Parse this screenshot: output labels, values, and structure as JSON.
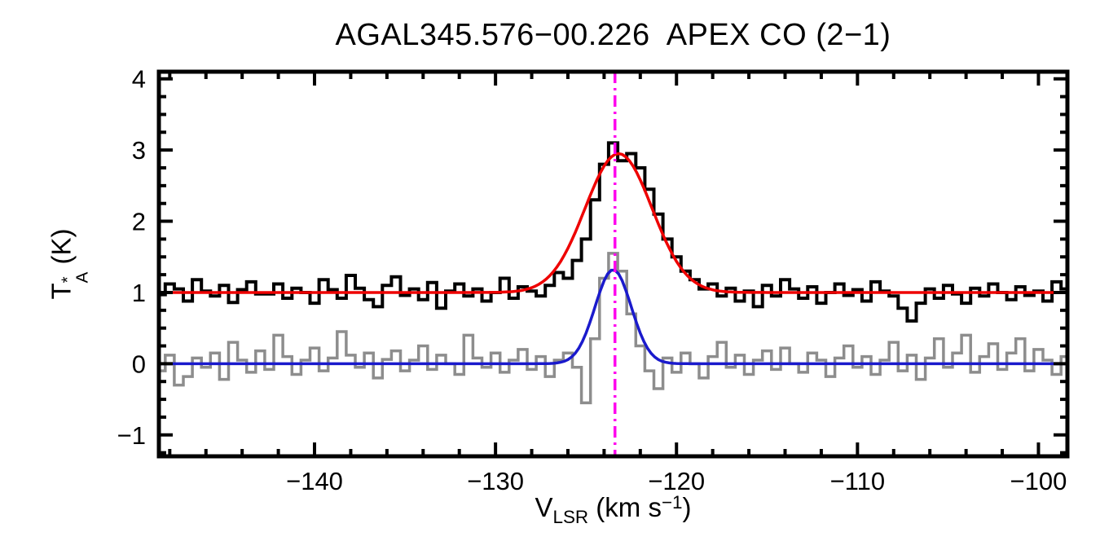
{
  "title": "AGAL345.576−00.226  APEX CO (2−1)",
  "labels": {
    "y": {
      "base": "T",
      "sup": "*",
      "sub": "A",
      "unit": " (K)"
    },
    "x": {
      "base": "V",
      "sub": "LSR",
      "mid": " (km s",
      "sup": "−1",
      "end": ")"
    }
  },
  "chart_data": {
    "type": "line",
    "title": "AGAL345.576−00.226  APEX CO (2−1)",
    "xlabel": "V_LSR (km s^-1)",
    "ylabel": "T_A^* (K)",
    "xlim": [
      -148.6,
      -98.4
    ],
    "ylim": [
      -1.3,
      4.1
    ],
    "grid": false,
    "legend": "none",
    "x_major_ticks": [
      -140,
      -130,
      -120,
      -110,
      -100
    ],
    "x_tick_labels": [
      "−140",
      "−130",
      "−120",
      "−110",
      "−100"
    ],
    "x_minor_step": 2,
    "y_major_ticks": [
      -1,
      0,
      1,
      2,
      3,
      4
    ],
    "y_tick_labels": [
      "−1",
      "0",
      "1",
      "2",
      "3",
      "4"
    ],
    "y_minor_step": 0.25,
    "vline": {
      "x": -123.4,
      "color": "#ff00ee",
      "style": "dash-dot",
      "name": "vlsr-marker-line"
    },
    "series": [
      {
        "name": "residual-spectrum",
        "style": "histogram",
        "color": "#8d8d8d",
        "width": 3.5,
        "x_start": -148.5,
        "dx": 0.5,
        "values": [
          -0.1,
          0.12,
          -0.3,
          -0.18,
          0.08,
          -0.05,
          0.15,
          -0.22,
          0.3,
          0.05,
          -0.12,
          0.18,
          -0.08,
          0.4,
          0.1,
          -0.15,
          0.05,
          0.22,
          -0.1,
          0.08,
          0.45,
          0.12,
          -0.05,
          0.15,
          -0.2,
          0.06,
          0.18,
          -0.1,
          0.05,
          0.25,
          -0.08,
          0.12,
          0.0,
          -0.15,
          0.4,
          0.08,
          -0.05,
          0.15,
          -0.12,
          0.05,
          0.2,
          -0.08,
          0.1,
          -0.18,
          0.05,
          0.15,
          -0.05,
          -0.55,
          0.35,
          1.2,
          1.55,
          1.3,
          0.7,
          0.25,
          -0.1,
          -0.35,
          0.08,
          -0.12,
          0.15,
          0.0,
          -0.2,
          0.1,
          0.3,
          -0.05,
          0.12,
          -0.15,
          0.05,
          0.18,
          -0.08,
          0.22,
          0.0,
          -0.12,
          0.15,
          0.05,
          -0.18,
          0.08,
          0.25,
          -0.05,
          0.1,
          -0.15,
          0.05,
          0.3,
          -0.1,
          0.12,
          -0.22,
          0.08,
          0.35,
          -0.05,
          0.15,
          0.4,
          -0.12,
          0.1,
          0.28,
          -0.08,
          0.15,
          0.35,
          -0.1,
          0.2,
          0.05,
          -0.15,
          0.1
        ]
      },
      {
        "name": "gaussian-fit-secondary",
        "style": "gaussian",
        "color": "#1a1acc",
        "width": 3.5,
        "baseline": 0.0,
        "amplitude": 1.32,
        "center": -123.5,
        "sigma": 1.0
      },
      {
        "name": "observed-spectrum",
        "style": "histogram",
        "color": "#000000",
        "width": 4,
        "x_start": -148.5,
        "dx": 0.5,
        "values": [
          0.97,
          1.12,
          1.05,
          0.88,
          1.18,
          1.02,
          0.95,
          1.1,
          0.86,
          1.04,
          1.15,
          0.98,
          0.98,
          1.12,
          0.92,
          1.06,
          1.0,
          0.85,
          1.18,
          1.04,
          0.92,
          1.24,
          1.06,
          0.9,
          0.8,
          1.1,
          1.22,
          0.96,
          1.05,
          0.9,
          1.14,
          0.78,
          1.02,
          1.12,
          0.95,
          1.05,
          0.88,
          1.0,
          1.2,
          0.92,
          1.08,
          1.02,
          0.95,
          1.1,
          1.28,
          1.2,
          1.45,
          1.75,
          2.3,
          2.8,
          3.1,
          2.85,
          2.95,
          2.75,
          2.45,
          2.1,
          1.75,
          1.5,
          1.3,
          1.18,
          1.05,
          1.12,
          0.95,
          1.06,
          0.88,
          1.02,
          0.8,
          1.1,
          0.95,
          1.18,
          1.05,
          0.92,
          1.08,
          0.85,
          1.0,
          1.12,
          0.96,
          1.04,
          0.88,
          1.15,
          1.02,
          0.95,
          0.78,
          0.6,
          0.85,
          1.05,
          0.92,
          1.1,
          0.98,
          0.85,
          1.06,
          0.95,
          1.12,
          1.0,
          0.9,
          1.08,
          0.96,
          1.02,
          0.88,
          1.15,
          1.05
        ]
      },
      {
        "name": "gaussian-fit-primary",
        "style": "gaussian",
        "color": "#ee0000",
        "width": 3.5,
        "baseline": 1.0,
        "amplitude": 1.95,
        "center": -123.2,
        "sigma": 1.85
      }
    ]
  }
}
